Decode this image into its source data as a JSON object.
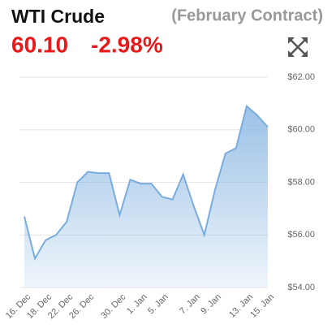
{
  "chart_data": {
    "type": "area",
    "title": "WTI Crude",
    "subtitle": "(February Contract)",
    "price": "60.10",
    "change": "-2.98%",
    "categories": [
      "16. Dec",
      null,
      "18. Dec",
      null,
      "22. Dec",
      null,
      "26. Dec",
      null,
      null,
      "30. Dec",
      null,
      "1. Jan",
      null,
      "5. Jan",
      null,
      null,
      "7. Jan",
      null,
      "9. Jan",
      null,
      null,
      "13. Jan",
      null,
      "15. Jan"
    ],
    "series": [
      {
        "name": "WTI Crude",
        "color": "#7aaddf",
        "values": [
          56.7,
          55.1,
          55.8,
          56.0,
          56.5,
          58.0,
          58.4,
          58.35,
          58.35,
          56.75,
          58.1,
          57.95,
          57.95,
          57.45,
          57.35,
          58.3,
          57.1,
          56.0,
          57.7,
          59.1,
          59.3,
          60.9,
          60.55,
          60.1
        ]
      }
    ],
    "ylim": [
      54,
      62
    ],
    "yticks": [
      {
        "value": 54,
        "label": "$54.00"
      },
      {
        "value": 56,
        "label": "$56.00"
      },
      {
        "value": 58,
        "label": "$58.00"
      },
      {
        "value": 60,
        "label": "$60.00"
      },
      {
        "value": 62,
        "label": "$62.00"
      }
    ],
    "grid": true
  }
}
